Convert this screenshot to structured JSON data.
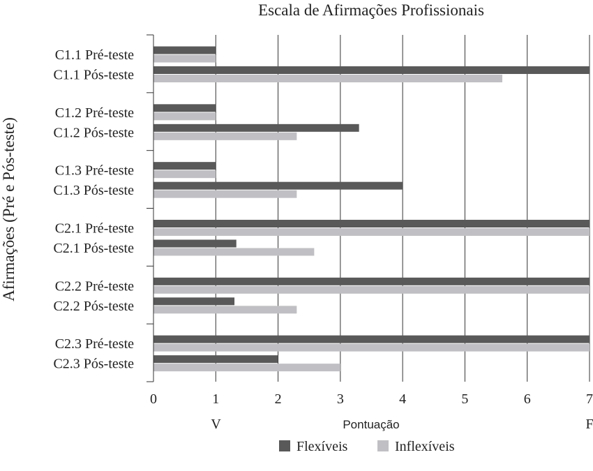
{
  "chart_data": {
    "type": "bar",
    "orientation": "horizontal",
    "title": "Escala de Afirmações Profissionais",
    "ylabel": "Afirmações (Pré e Pós-teste)",
    "xlabel": "Pontuação",
    "x_end_labels": {
      "left": "V",
      "right": "F"
    },
    "xlim": [
      0,
      7
    ],
    "xticks": [
      0,
      1,
      2,
      3,
      4,
      5,
      6,
      7
    ],
    "grid": "vertical",
    "legend_position": "bottom",
    "categories": [
      "C1.1 Pré-teste",
      "C1.1 Pós-teste",
      "C1.2 Pré-teste",
      "C1.2 Pós-teste",
      "C1.3 Pré-teste",
      "C1.3 Pós-teste",
      "C2.1 Pré-teste",
      "C2.1 Pós-teste",
      "C2.2 Pré-teste",
      "C2.2 Pós-teste",
      "C2.3 Pré-teste",
      "C2.3 Pós-teste"
    ],
    "series": [
      {
        "name": "Flexíveis",
        "color": "#595959",
        "values": [
          1,
          7,
          1,
          3.3,
          1,
          4,
          7,
          1.33,
          7,
          1.3,
          7,
          2
        ]
      },
      {
        "name": "Inflexíveis",
        "color": "#c0c0c4",
        "values": [
          1,
          5.6,
          1,
          2.3,
          1,
          2.3,
          7,
          2.58,
          7,
          2.3,
          7,
          3
        ]
      }
    ]
  }
}
